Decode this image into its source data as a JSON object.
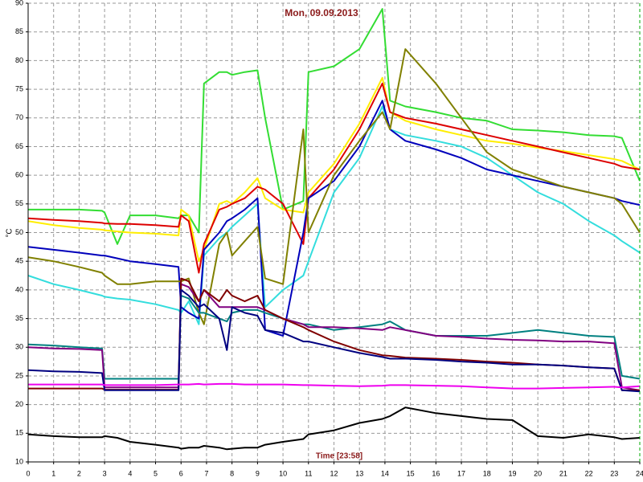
{
  "chart_data": {
    "type": "line",
    "title": "Mon, 09.09.2013",
    "xlabel": "Time [23:58]",
    "ylabel": "°C",
    "xlim": [
      0,
      24
    ],
    "ylim": [
      10,
      90
    ],
    "xticks": [
      0,
      1,
      2,
      3,
      4,
      5,
      6,
      7,
      8,
      9,
      10,
      11,
      12,
      13,
      14,
      15,
      16,
      17,
      18,
      19,
      20,
      21,
      22,
      23,
      24
    ],
    "yticks": [
      10,
      15,
      20,
      25,
      30,
      35,
      40,
      45,
      50,
      55,
      60,
      65,
      70,
      75,
      80,
      85,
      90
    ],
    "grid": true,
    "x": [
      0,
      1,
      2,
      2.9,
      3,
      3.5,
      4,
      5,
      5.9,
      6,
      6.3,
      6.7,
      6.9,
      7.5,
      7.8,
      8,
      8.5,
      9,
      9.3,
      10,
      10.8,
      11,
      12,
      13,
      13.9,
      14.2,
      14.8,
      16,
      17,
      18,
      19,
      20,
      21,
      22,
      23,
      23.3,
      24
    ],
    "series": [
      {
        "color": "#33dd33",
        "values": [
          54,
          54,
          54,
          53.8,
          53.5,
          48,
          53,
          53,
          52.5,
          53,
          53,
          50,
          76,
          78,
          78,
          77.5,
          78,
          78.3,
          70,
          54,
          55.5,
          78,
          79,
          82,
          89,
          73,
          72,
          71,
          70,
          69.5,
          68,
          67.8,
          67.5,
          67,
          66.8,
          66.5,
          59
        ]
      },
      {
        "color": "#ffee00",
        "values": [
          52,
          51.3,
          50.8,
          50.5,
          50.4,
          50.2,
          50,
          49.8,
          49.5,
          54,
          53,
          45,
          47,
          55,
          55.5,
          55,
          57,
          59.5,
          56,
          54,
          53.5,
          57,
          62,
          69,
          77,
          71,
          69.5,
          68,
          67,
          66,
          65.5,
          64.8,
          64.2,
          63.5,
          62.8,
          62.5,
          61
        ]
      },
      {
        "color": "#dd0000",
        "values": [
          52.5,
          52.2,
          52,
          51.7,
          51.6,
          51.5,
          51.5,
          51.3,
          51,
          53,
          52,
          43,
          48,
          54,
          54.5,
          55,
          56,
          58,
          57.5,
          55,
          48,
          56,
          61,
          68,
          76,
          71,
          70,
          69,
          68,
          67,
          66,
          65,
          64,
          63,
          62,
          61.5,
          61
        ]
      },
      {
        "color": "#33dddd",
        "values": [
          42.5,
          41,
          40,
          39,
          38.8,
          38.5,
          38.3,
          37.5,
          36.5,
          36,
          38,
          34,
          46,
          49,
          50,
          51,
          53,
          55,
          37,
          40,
          42.5,
          45,
          57,
          63,
          72,
          68,
          67,
          66,
          65,
          63,
          60,
          57,
          55,
          52,
          49.5,
          48.5,
          46.5
        ]
      },
      {
        "color": "#0000bb",
        "values": [
          47.5,
          47,
          46.5,
          46,
          46,
          45.5,
          45,
          44.5,
          44,
          37,
          36,
          35,
          47,
          50,
          52,
          52.5,
          54,
          56,
          33,
          32,
          50,
          56,
          59,
          65,
          73,
          68,
          66,
          64.5,
          63,
          61,
          60,
          59,
          58,
          57,
          56,
          55.5,
          54.8
        ]
      },
      {
        "color": "#808000",
        "values": [
          45.7,
          45,
          44,
          43,
          42.5,
          41,
          41,
          41.5,
          41.5,
          41.5,
          42,
          36,
          34,
          48,
          50,
          46,
          48.5,
          51,
          42,
          41,
          68,
          50,
          60,
          66,
          71,
          68,
          82,
          76,
          70,
          64,
          61,
          59.5,
          58,
          57,
          56,
          55,
          50
        ]
      },
      {
        "color": "#008080",
        "values": [
          30.5,
          30.3,
          30,
          29.8,
          24.5,
          24.5,
          24.5,
          24.5,
          24.5,
          39,
          38.5,
          36,
          36,
          35,
          34.5,
          36,
          36.5,
          36.5,
          36,
          35,
          34,
          34,
          33,
          33.5,
          34,
          34.5,
          33,
          32,
          32,
          32,
          32.5,
          33,
          32.5,
          32,
          31.8,
          25,
          24.5
        ]
      },
      {
        "color": "#800080",
        "values": [
          30,
          29.8,
          29.7,
          29.5,
          23,
          23,
          23,
          23,
          23,
          41,
          40.5,
          38,
          40,
          37,
          37,
          37,
          37,
          37,
          36.5,
          35,
          34,
          33.5,
          33.5,
          33.3,
          33,
          33.5,
          33,
          32,
          31.8,
          31.5,
          31.3,
          31.2,
          31,
          31,
          30.7,
          23,
          22.5
        ]
      },
      {
        "color": "#800000",
        "values": [
          22.8,
          22.8,
          22.8,
          22.8,
          22.6,
          22.6,
          22.6,
          22.6,
          22.6,
          42,
          41.5,
          38,
          40,
          38,
          40,
          39,
          38,
          39,
          36.5,
          35,
          33.5,
          33,
          31,
          29.5,
          28.6,
          28.5,
          28.2,
          28,
          27.8,
          27.5,
          27.3,
          27,
          26.8,
          26.5,
          26.3,
          22.5,
          22.5
        ]
      },
      {
        "color": "#000080",
        "values": [
          26,
          25.8,
          25.7,
          25.5,
          22.5,
          22.5,
          22.5,
          22.5,
          22.5,
          40,
          39,
          37,
          37.5,
          35,
          29.5,
          37,
          36,
          35.5,
          33,
          32.5,
          31,
          31,
          30,
          29,
          28.3,
          28,
          28,
          27.8,
          27.5,
          27.3,
          27,
          27,
          26.8,
          26.5,
          26.3,
          22.5,
          22.3
        ]
      },
      {
        "color": "#ee00ee",
        "values": [
          23.5,
          23.5,
          23.5,
          23.5,
          23.4,
          23.4,
          23.4,
          23.4,
          23.5,
          23.5,
          23.5,
          23.6,
          23.5,
          23.6,
          23.6,
          23.6,
          23.5,
          23.5,
          23.5,
          23.5,
          23.4,
          23.4,
          23.3,
          23.2,
          23.3,
          23.4,
          23.4,
          23.3,
          23.2,
          23,
          22.8,
          22.8,
          22.9,
          23,
          23.1,
          23,
          23.2
        ]
      },
      {
        "color": "#000000",
        "values": [
          14.8,
          14.5,
          14.3,
          14.3,
          14.5,
          14.2,
          13.5,
          13,
          12.5,
          12.3,
          12.5,
          12.5,
          12.8,
          12.5,
          12.2,
          12.3,
          12.5,
          12.5,
          13,
          13.5,
          14,
          14.8,
          15.5,
          16.8,
          17.5,
          18,
          19.5,
          18.5,
          18,
          17.5,
          17.3,
          14.5,
          14.2,
          14.8,
          14.3,
          14,
          14.2
        ]
      }
    ]
  }
}
